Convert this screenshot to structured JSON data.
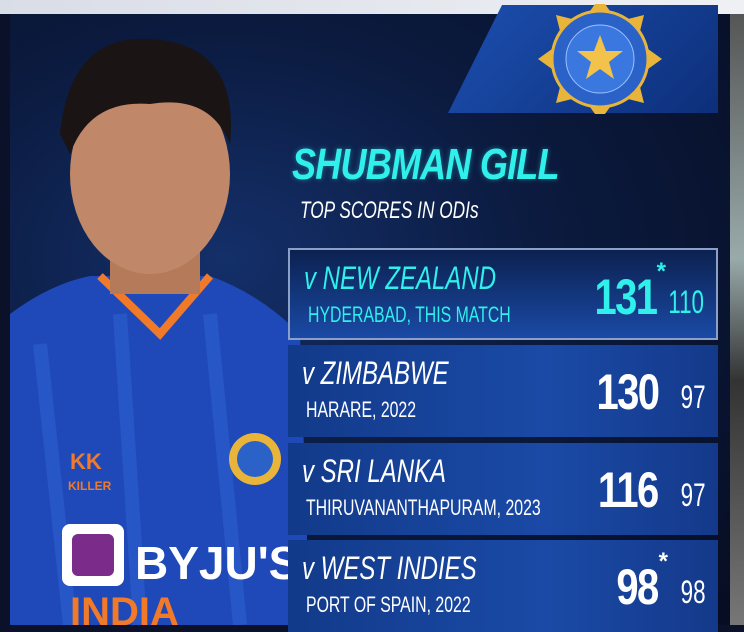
{
  "player": {
    "name": "SHUBMAN GILL",
    "subtitle": "TOP SCORES IN ODIs"
  },
  "logos": {
    "board_seal": "BOARD OF CONTROL FOR CRICKET IN INDIA",
    "jersey_sponsor": "BYJU'S",
    "kit_brand": "KILLER",
    "jersey_text": "INDIA"
  },
  "colors": {
    "accent": "#2ff0ea",
    "row_bg": "#1a4aa6",
    "panel": "#0b1a3e"
  },
  "scores": [
    {
      "opponent": "v NEW ZEALAND",
      "venue": "HYDERABAD, THIS MATCH",
      "runs": "131",
      "not_out": "*",
      "balls": "110",
      "highlighted": true
    },
    {
      "opponent": "v ZIMBABWE",
      "venue": "HARARE, 2022",
      "runs": "130",
      "not_out": "",
      "balls": "97",
      "highlighted": false
    },
    {
      "opponent": "v SRI LANKA",
      "venue": "THIRUVANANTHAPURAM, 2023",
      "runs": "116",
      "not_out": "",
      "balls": "97",
      "highlighted": false
    },
    {
      "opponent": "v WEST INDIES",
      "venue": "PORT OF SPAIN, 2022",
      "runs": "98",
      "not_out": "*",
      "balls": "98",
      "highlighted": false
    }
  ]
}
